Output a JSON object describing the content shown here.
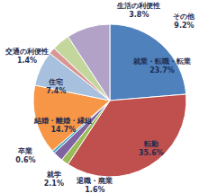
{
  "chart_data": {
    "type": "pie",
    "categories": [
      "就業・転職・転業",
      "転勤",
      "退職・廃業",
      "就学",
      "卒業",
      "結婚・離婚・縁組",
      "住宅",
      "交通の利便性",
      "生活の利便性",
      "その他"
    ],
    "values": [
      23.7,
      35.6,
      1.6,
      2.1,
      0.6,
      14.7,
      7.4,
      1.4,
      3.8,
      9.2
    ],
    "value_labels": [
      "23.7%",
      "35.6%",
      "1.6%",
      "2.1%",
      "0.6%",
      "14.7%",
      "7.4%",
      "1.4%",
      "3.8%",
      "9.2%"
    ],
    "colors": [
      "#4F81BD",
      "#C0504D",
      "#9BBB59",
      "#8064A2",
      "#4BACC6",
      "#F79646",
      "#A7C0DE",
      "#D99694",
      "#C3D69B",
      "#B3A2C7"
    ],
    "data_labels": true
  }
}
